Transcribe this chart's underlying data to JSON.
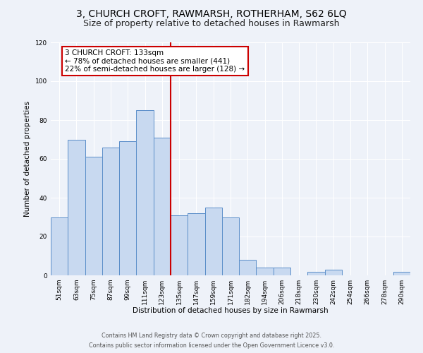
{
  "title": "3, CHURCH CROFT, RAWMARSH, ROTHERHAM, S62 6LQ",
  "subtitle": "Size of property relative to detached houses in Rawmarsh",
  "xlabel": "Distribution of detached houses by size in Rawmarsh",
  "ylabel": "Number of detached properties",
  "bar_labels": [
    "51sqm",
    "63sqm",
    "75sqm",
    "87sqm",
    "99sqm",
    "111sqm",
    "123sqm",
    "135sqm",
    "147sqm",
    "159sqm",
    "171sqm",
    "182sqm",
    "194sqm",
    "206sqm",
    "218sqm",
    "230sqm",
    "242sqm",
    "254sqm",
    "266sqm",
    "278sqm",
    "290sqm"
  ],
  "bar_values": [
    30,
    70,
    61,
    66,
    69,
    85,
    71,
    31,
    32,
    35,
    30,
    8,
    4,
    4,
    0,
    2,
    3,
    0,
    0,
    0,
    2
  ],
  "bar_color": "#c8d9f0",
  "bar_edge_color": "#5b8ec9",
  "vline_index": 7,
  "vline_color": "#cc0000",
  "annotation_title": "3 CHURCH CROFT: 133sqm",
  "annotation_line1": "← 78% of detached houses are smaller (441)",
  "annotation_line2": "22% of semi-detached houses are larger (128) →",
  "annotation_box_color": "#ffffff",
  "annotation_box_edge_color": "#cc0000",
  "ylim": [
    0,
    120
  ],
  "yticks": [
    0,
    20,
    40,
    60,
    80,
    100,
    120
  ],
  "footer1": "Contains HM Land Registry data © Crown copyright and database right 2025.",
  "footer2": "Contains public sector information licensed under the Open Government Licence v3.0.",
  "bg_color": "#eef2f9",
  "grid_color": "#ffffff",
  "title_fontsize": 10,
  "subtitle_fontsize": 9,
  "axis_label_fontsize": 7.5,
  "tick_fontsize": 6.5,
  "annotation_fontsize": 7.5,
  "footer_fontsize": 5.8
}
